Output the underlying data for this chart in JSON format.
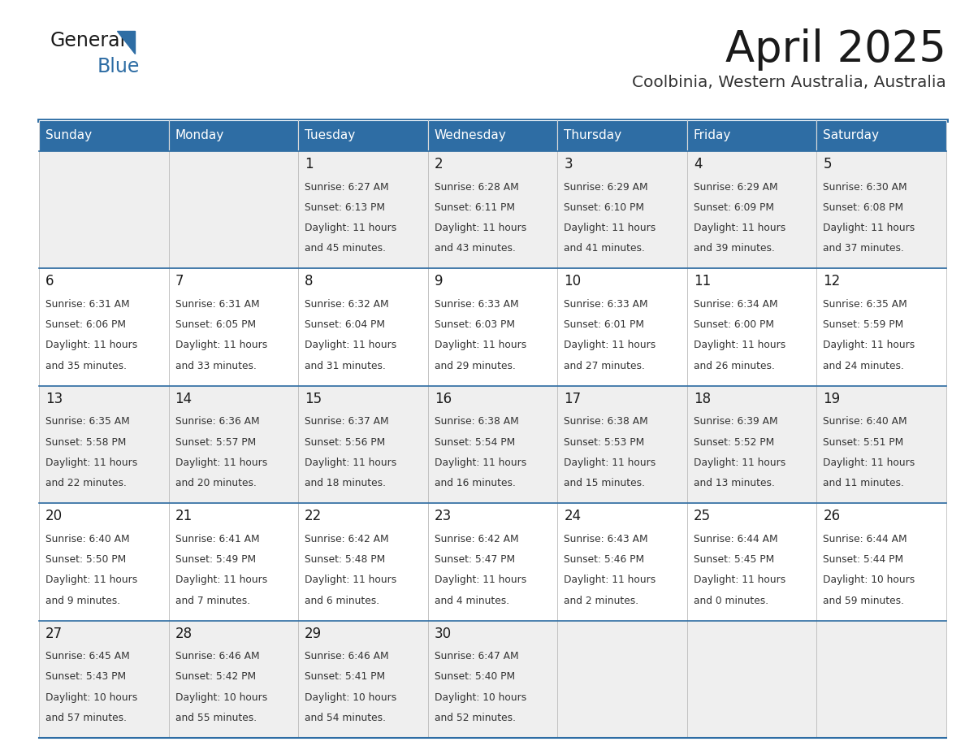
{
  "title": "April 2025",
  "subtitle": "Coolbinia, Western Australia, Australia",
  "header_bg_color": "#2E6DA4",
  "header_text_color": "#FFFFFF",
  "row_colors": [
    "#EFEFEF",
    "#FFFFFF"
  ],
  "text_color": "#333333",
  "border_color": "#2E6DA4",
  "days_of_week": [
    "Sunday",
    "Monday",
    "Tuesday",
    "Wednesday",
    "Thursday",
    "Friday",
    "Saturday"
  ],
  "weeks": [
    [
      {
        "day": "",
        "sunrise": "",
        "sunset": "",
        "daylight": ""
      },
      {
        "day": "",
        "sunrise": "",
        "sunset": "",
        "daylight": ""
      },
      {
        "day": "1",
        "sunrise": "6:27 AM",
        "sunset": "6:13 PM",
        "daylight_h": "11 hours",
        "daylight_m": "and 45 minutes."
      },
      {
        "day": "2",
        "sunrise": "6:28 AM",
        "sunset": "6:11 PM",
        "daylight_h": "11 hours",
        "daylight_m": "and 43 minutes."
      },
      {
        "day": "3",
        "sunrise": "6:29 AM",
        "sunset": "6:10 PM",
        "daylight_h": "11 hours",
        "daylight_m": "and 41 minutes."
      },
      {
        "day": "4",
        "sunrise": "6:29 AM",
        "sunset": "6:09 PM",
        "daylight_h": "11 hours",
        "daylight_m": "and 39 minutes."
      },
      {
        "day": "5",
        "sunrise": "6:30 AM",
        "sunset": "6:08 PM",
        "daylight_h": "11 hours",
        "daylight_m": "and 37 minutes."
      }
    ],
    [
      {
        "day": "6",
        "sunrise": "6:31 AM",
        "sunset": "6:06 PM",
        "daylight_h": "11 hours",
        "daylight_m": "and 35 minutes."
      },
      {
        "day": "7",
        "sunrise": "6:31 AM",
        "sunset": "6:05 PM",
        "daylight_h": "11 hours",
        "daylight_m": "and 33 minutes."
      },
      {
        "day": "8",
        "sunrise": "6:32 AM",
        "sunset": "6:04 PM",
        "daylight_h": "11 hours",
        "daylight_m": "and 31 minutes."
      },
      {
        "day": "9",
        "sunrise": "6:33 AM",
        "sunset": "6:03 PM",
        "daylight_h": "11 hours",
        "daylight_m": "and 29 minutes."
      },
      {
        "day": "10",
        "sunrise": "6:33 AM",
        "sunset": "6:01 PM",
        "daylight_h": "11 hours",
        "daylight_m": "and 27 minutes."
      },
      {
        "day": "11",
        "sunrise": "6:34 AM",
        "sunset": "6:00 PM",
        "daylight_h": "11 hours",
        "daylight_m": "and 26 minutes."
      },
      {
        "day": "12",
        "sunrise": "6:35 AM",
        "sunset": "5:59 PM",
        "daylight_h": "11 hours",
        "daylight_m": "and 24 minutes."
      }
    ],
    [
      {
        "day": "13",
        "sunrise": "6:35 AM",
        "sunset": "5:58 PM",
        "daylight_h": "11 hours",
        "daylight_m": "and 22 minutes."
      },
      {
        "day": "14",
        "sunrise": "6:36 AM",
        "sunset": "5:57 PM",
        "daylight_h": "11 hours",
        "daylight_m": "and 20 minutes."
      },
      {
        "day": "15",
        "sunrise": "6:37 AM",
        "sunset": "5:56 PM",
        "daylight_h": "11 hours",
        "daylight_m": "and 18 minutes."
      },
      {
        "day": "16",
        "sunrise": "6:38 AM",
        "sunset": "5:54 PM",
        "daylight_h": "11 hours",
        "daylight_m": "and 16 minutes."
      },
      {
        "day": "17",
        "sunrise": "6:38 AM",
        "sunset": "5:53 PM",
        "daylight_h": "11 hours",
        "daylight_m": "and 15 minutes."
      },
      {
        "day": "18",
        "sunrise": "6:39 AM",
        "sunset": "5:52 PM",
        "daylight_h": "11 hours",
        "daylight_m": "and 13 minutes."
      },
      {
        "day": "19",
        "sunrise": "6:40 AM",
        "sunset": "5:51 PM",
        "daylight_h": "11 hours",
        "daylight_m": "and 11 minutes."
      }
    ],
    [
      {
        "day": "20",
        "sunrise": "6:40 AM",
        "sunset": "5:50 PM",
        "daylight_h": "11 hours",
        "daylight_m": "and 9 minutes."
      },
      {
        "day": "21",
        "sunrise": "6:41 AM",
        "sunset": "5:49 PM",
        "daylight_h": "11 hours",
        "daylight_m": "and 7 minutes."
      },
      {
        "day": "22",
        "sunrise": "6:42 AM",
        "sunset": "5:48 PM",
        "daylight_h": "11 hours",
        "daylight_m": "and 6 minutes."
      },
      {
        "day": "23",
        "sunrise": "6:42 AM",
        "sunset": "5:47 PM",
        "daylight_h": "11 hours",
        "daylight_m": "and 4 minutes."
      },
      {
        "day": "24",
        "sunrise": "6:43 AM",
        "sunset": "5:46 PM",
        "daylight_h": "11 hours",
        "daylight_m": "and 2 minutes."
      },
      {
        "day": "25",
        "sunrise": "6:44 AM",
        "sunset": "5:45 PM",
        "daylight_h": "11 hours",
        "daylight_m": "and 0 minutes."
      },
      {
        "day": "26",
        "sunrise": "6:44 AM",
        "sunset": "5:44 PM",
        "daylight_h": "10 hours",
        "daylight_m": "and 59 minutes."
      }
    ],
    [
      {
        "day": "27",
        "sunrise": "6:45 AM",
        "sunset": "5:43 PM",
        "daylight_h": "10 hours",
        "daylight_m": "and 57 minutes."
      },
      {
        "day": "28",
        "sunrise": "6:46 AM",
        "sunset": "5:42 PM",
        "daylight_h": "10 hours",
        "daylight_m": "and 55 minutes."
      },
      {
        "day": "29",
        "sunrise": "6:46 AM",
        "sunset": "5:41 PM",
        "daylight_h": "10 hours",
        "daylight_m": "and 54 minutes."
      },
      {
        "day": "30",
        "sunrise": "6:47 AM",
        "sunset": "5:40 PM",
        "daylight_h": "10 hours",
        "daylight_m": "and 52 minutes."
      },
      {
        "day": "",
        "sunrise": "",
        "sunset": "",
        "daylight_h": "",
        "daylight_m": ""
      },
      {
        "day": "",
        "sunrise": "",
        "sunset": "",
        "daylight_h": "",
        "daylight_m": ""
      },
      {
        "day": "",
        "sunrise": "",
        "sunset": "",
        "daylight_h": "",
        "daylight_m": ""
      }
    ]
  ]
}
